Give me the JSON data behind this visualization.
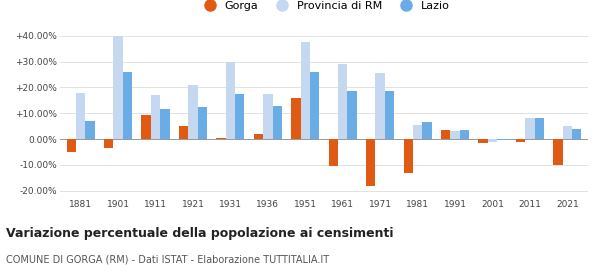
{
  "years": [
    1881,
    1901,
    1911,
    1921,
    1931,
    1936,
    1951,
    1961,
    1971,
    1981,
    1991,
    2001,
    2011,
    2021
  ],
  "gorga": [
    -5.0,
    -3.5,
    9.5,
    5.0,
    0.5,
    2.0,
    16.0,
    -10.5,
    -18.0,
    -13.0,
    3.5,
    -1.5,
    -1.0,
    -10.0
  ],
  "provincia_rm": [
    18.0,
    40.0,
    17.0,
    21.0,
    30.0,
    17.5,
    37.5,
    29.0,
    25.5,
    5.5,
    3.0,
    -1.0,
    8.0,
    5.0
  ],
  "lazio": [
    7.0,
    26.0,
    11.5,
    12.5,
    17.5,
    13.0,
    26.0,
    18.5,
    18.5,
    6.5,
    3.5,
    -0.5,
    8.0,
    4.0
  ],
  "gorga_color": "#e05a14",
  "provincia_color": "#c5d8f0",
  "lazio_color": "#6aace6",
  "title": "Variazione percentuale della popolazione ai censimenti",
  "subtitle": "COMUNE DI GORGA (RM) - Dati ISTAT - Elaborazione TUTTITALIA.IT",
  "ylim": [
    -22,
    43
  ],
  "yticks": [
    -20.0,
    -10.0,
    0.0,
    10.0,
    20.0,
    30.0,
    40.0
  ],
  "background_color": "#ffffff",
  "grid_color": "#dddddd"
}
